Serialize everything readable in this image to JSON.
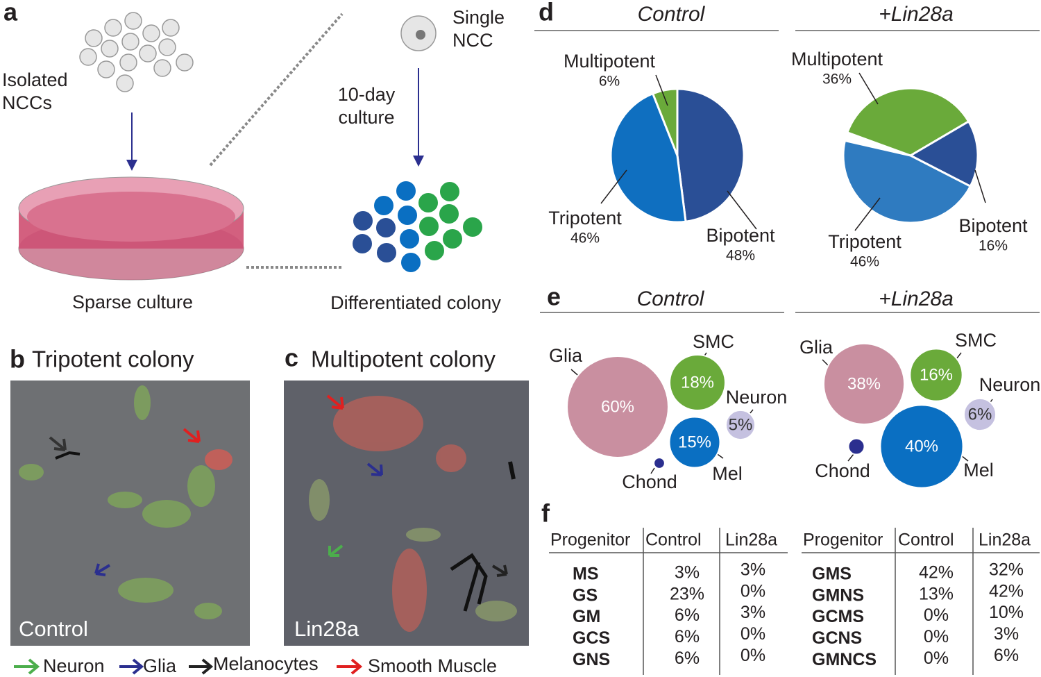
{
  "panel_a": {
    "label": "a",
    "isolated": [
      "Isolated",
      "NCCs"
    ],
    "single": [
      "Single",
      "NCC"
    ],
    "culture": [
      "10-day",
      "culture"
    ],
    "sparse": "Sparse culture",
    "colony": "Differentiated colony"
  },
  "panel_b": {
    "label": "b",
    "title": "Tripotent colony",
    "image_label": "Control"
  },
  "panel_c": {
    "label": "c",
    "title": "Multipotent colony",
    "image_label": "Lin28a"
  },
  "legend": [
    "Neuron",
    "Glia",
    "Melanocytes",
    "Smooth Muscle"
  ],
  "panel_d": {
    "label": "d"
  },
  "panel_e": {
    "label": "e"
  },
  "chart_data": [
    {
      "type": "pie",
      "title": "Control",
      "categories": [
        "Bipotent",
        "Tripotent",
        "Multipotent"
      ],
      "values": [
        48,
        46,
        6
      ],
      "value_labels": [
        "48%",
        "46%",
        "6%"
      ],
      "colors": [
        "#2a4f96",
        "#0f6fc0",
        "#6aaa3a"
      ]
    },
    {
      "type": "pie",
      "title": "+Lin28a",
      "categories": [
        "Multipotent",
        "Bipotent",
        "Tripotent"
      ],
      "values": [
        36,
        16,
        46
      ],
      "value_labels": [
        "36%",
        "16%",
        "46%"
      ],
      "colors": [
        "#6aaa3a",
        "#2a4f96",
        "#2f7bc0"
      ]
    },
    {
      "type": "bubble",
      "title": "Control",
      "categories": [
        "Glia",
        "SMC",
        "Neuron",
        "Mel",
        "Chond"
      ],
      "values": [
        60,
        18,
        5,
        15,
        0.7
      ],
      "value_labels": [
        "60%",
        "18%",
        "5%",
        "15%",
        null
      ],
      "colors": [
        "#c98fa0",
        "#6aaa3a",
        "#c5c1e0",
        "#0a6fc2",
        "#2b2f8f"
      ]
    },
    {
      "type": "bubble",
      "title": "+Lin28a",
      "categories": [
        "Glia",
        "SMC",
        "Neuron",
        "Mel",
        "Chond"
      ],
      "values": [
        38,
        16,
        6,
        40,
        1.5
      ],
      "value_labels": [
        "38%",
        "16%",
        "6%",
        "40%",
        null
      ],
      "colors": [
        "#c98fa0",
        "#6aaa3a",
        "#c5c1e0",
        "#0a6fc2",
        "#2b2f8f"
      ]
    }
  ],
  "table": {
    "label": "f",
    "header": [
      "Progenitor",
      "Control",
      "Lin28a"
    ],
    "left": [
      [
        "MS",
        "3%",
        "3%"
      ],
      [
        "GS",
        "23%",
        "0%"
      ],
      [
        "GM",
        "6%",
        "3%"
      ],
      [
        "GCS",
        "6%",
        "0%"
      ],
      [
        "GNS",
        "6%",
        "0%"
      ]
    ],
    "right": [
      [
        "GMS",
        "42%",
        "32%"
      ],
      [
        "GMNS",
        "13%",
        "42%"
      ],
      [
        "GCMS",
        "0%",
        "10%"
      ],
      [
        "GCNS",
        "0%",
        "3%"
      ],
      [
        "GMNCS",
        "0%",
        "6%"
      ]
    ]
  }
}
